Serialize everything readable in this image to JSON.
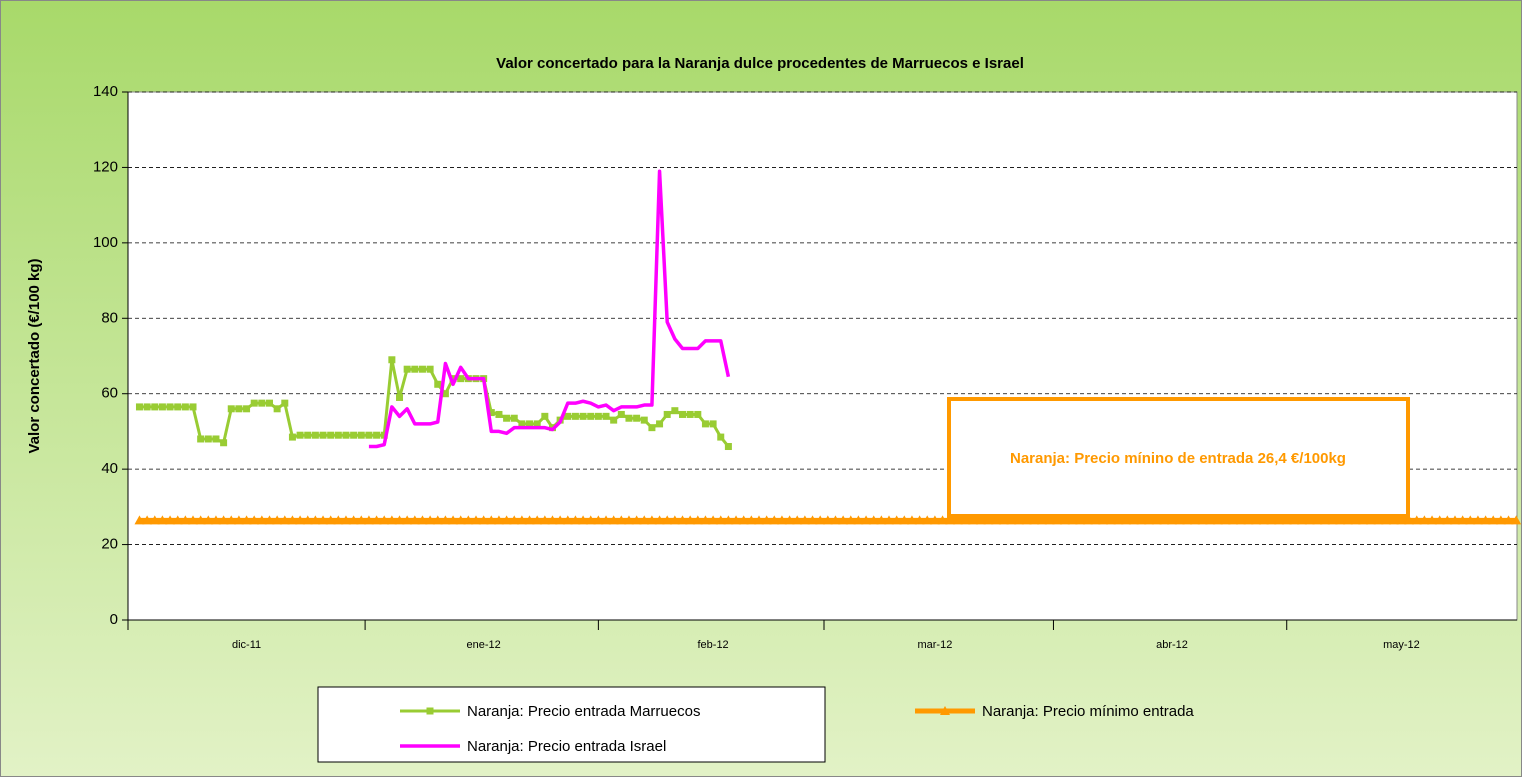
{
  "chart_data": {
    "type": "line",
    "title": "Valor concertado para la Naranja dulce procedentes de Marruecos e Israel",
    "y_label": "Valor concertado (€/100 kg)",
    "annotation": "Naranja: Precio mínino de entrada 26,4 €/100kg",
    "ylim": [
      0,
      140
    ],
    "yticks": [
      0,
      20,
      40,
      60,
      80,
      100,
      120,
      140
    ],
    "grid": true,
    "categories": [
      null,
      null,
      null,
      null,
      null,
      null,
      null,
      null,
      null,
      null,
      null,
      null,
      null,
      null,
      null,
      "dic-11",
      null,
      null,
      null,
      null,
      null,
      null,
      null,
      null,
      null,
      null,
      null,
      null,
      null,
      null,
      null,
      null,
      null,
      null,
      null,
      null,
      null,
      null,
      null,
      null,
      null,
      null,
      null,
      null,
      null,
      null,
      "ene-12",
      null,
      null,
      null,
      null,
      null,
      null,
      null,
      null,
      null,
      null,
      null,
      null,
      null,
      null,
      null,
      null,
      null,
      null,
      null,
      null,
      null,
      null,
      null,
      null,
      null,
      null,
      null,
      null,
      null,
      "feb-12",
      null,
      null,
      null,
      null,
      null,
      null,
      null,
      null,
      null,
      null,
      null,
      null,
      null,
      null,
      null,
      null,
      null,
      null,
      null,
      null,
      null,
      null,
      null,
      null,
      null,
      null,
      null,
      null,
      "mar-12",
      null,
      null,
      null,
      null,
      null,
      null,
      null,
      null,
      null,
      null,
      null,
      null,
      null,
      null,
      null,
      null,
      null,
      null,
      null,
      null,
      null,
      null,
      null,
      null,
      null,
      null,
      null,
      null,
      null,
      null,
      "abr-12",
      null,
      null,
      null,
      null,
      null,
      null,
      null,
      null,
      null,
      null,
      null,
      null,
      null,
      null,
      null,
      null,
      null,
      null,
      null,
      null,
      null,
      null,
      null,
      null,
      null,
      null,
      null,
      null,
      null,
      "may-12",
      null,
      null,
      null,
      null,
      null,
      null,
      null,
      null,
      null,
      null,
      null,
      null,
      null,
      null,
      null
    ],
    "series": [
      {
        "name": "Naranja: Precio entrada Marruecos",
        "color": "#99cc33",
        "width": 3,
        "marker": "square",
        "values": [
          null,
          56.5,
          56.5,
          56.5,
          56.5,
          56.5,
          56.5,
          56.5,
          56.5,
          48,
          48,
          48,
          47,
          56,
          56,
          56,
          57.5,
          57.5,
          57.5,
          56,
          57.5,
          48.5,
          49,
          49,
          49,
          49,
          49,
          49,
          49,
          49,
          49,
          49,
          49,
          49,
          69,
          59,
          66.5,
          66.5,
          66.5,
          66.5,
          62.5,
          60,
          64,
          64,
          64,
          64,
          64,
          55,
          54.5,
          53.5,
          53.5,
          52,
          52,
          52,
          54,
          51,
          53,
          54,
          54,
          54,
          54,
          54,
          54,
          53,
          54.5,
          53.5,
          53.5,
          53,
          51,
          52,
          54.5,
          55.5,
          54.5,
          54.5,
          54.5,
          52,
          52,
          48.5,
          46,
          null,
          null,
          null,
          null,
          null,
          null,
          null,
          null,
          null,
          null,
          null,
          null,
          null,
          null,
          null,
          null,
          null,
          null,
          null,
          null,
          null,
          null,
          null,
          null,
          null,
          null,
          null,
          null,
          null,
          null,
          null,
          null,
          null,
          null,
          null,
          null,
          null,
          null,
          null,
          null,
          null,
          null,
          null,
          null,
          null,
          null,
          null,
          null,
          null,
          null,
          null,
          null,
          null,
          null,
          null,
          null,
          null,
          null,
          null,
          null,
          null,
          null,
          null,
          null,
          null,
          null,
          null,
          null,
          null,
          null,
          null,
          null,
          null,
          null,
          null,
          null,
          null,
          null,
          null,
          null,
          null,
          null,
          null,
          null,
          null,
          null,
          null,
          null,
          null,
          null,
          null,
          null,
          null,
          null,
          null,
          null,
          null,
          null,
          null,
          null,
          null,
          null,
          null
        ]
      },
      {
        "name": "Naranja: Precio mínimo entrada",
        "color": "#ff9900",
        "width": 5,
        "marker": "triangle",
        "values": [
          null,
          26.4,
          26.4,
          26.4,
          26.4,
          26.4,
          26.4,
          26.4,
          26.4,
          26.4,
          26.4,
          26.4,
          26.4,
          26.4,
          26.4,
          26.4,
          26.4,
          26.4,
          26.4,
          26.4,
          26.4,
          26.4,
          26.4,
          26.4,
          26.4,
          26.4,
          26.4,
          26.4,
          26.4,
          26.4,
          26.4,
          26.4,
          26.4,
          26.4,
          26.4,
          26.4,
          26.4,
          26.4,
          26.4,
          26.4,
          26.4,
          26.4,
          26.4,
          26.4,
          26.4,
          26.4,
          26.4,
          26.4,
          26.4,
          26.4,
          26.4,
          26.4,
          26.4,
          26.4,
          26.4,
          26.4,
          26.4,
          26.4,
          26.4,
          26.4,
          26.4,
          26.4,
          26.4,
          26.4,
          26.4,
          26.4,
          26.4,
          26.4,
          26.4,
          26.4,
          26.4,
          26.4,
          26.4,
          26.4,
          26.4,
          26.4,
          26.4,
          26.4,
          26.4,
          26.4,
          26.4,
          26.4,
          26.4,
          26.4,
          26.4,
          26.4,
          26.4,
          26.4,
          26.4,
          26.4,
          26.4,
          26.4,
          26.4,
          26.4,
          26.4,
          26.4,
          26.4,
          26.4,
          26.4,
          26.4,
          26.4,
          26.4,
          26.4,
          26.4,
          26.4,
          26.4,
          26.4,
          26.4,
          26.4,
          26.4,
          26.4,
          26.4,
          26.4,
          26.4,
          26.4,
          26.4,
          26.4,
          26.4,
          26.4,
          26.4,
          26.4,
          26.4,
          26.4,
          26.4,
          26.4,
          26.4,
          26.4,
          26.4,
          26.4,
          26.4,
          26.4,
          26.4,
          26.4,
          26.4,
          26.4,
          26.4,
          26.4,
          26.4,
          26.4,
          26.4,
          26.4,
          26.4,
          26.4,
          26.4,
          26.4,
          26.4,
          26.4,
          26.4,
          26.4,
          26.4,
          26.4,
          26.4,
          26.4,
          26.4,
          26.4,
          26.4,
          26.4,
          26.4,
          26.4,
          26.4,
          26.4,
          26.4,
          26.4,
          26.4,
          26.4,
          26.4,
          26.4,
          26.4,
          26.4,
          26.4,
          26.4,
          26.4,
          26.4,
          26.4,
          26.4,
          26.4,
          26.4,
          26.4,
          26.4,
          26.4,
          26.4,
          26.4
        ]
      },
      {
        "name": "Naranja: Precio entrada Israel",
        "color": "#ff00ff",
        "width": 3.5,
        "marker": "none",
        "values": [
          null,
          null,
          null,
          null,
          null,
          null,
          null,
          null,
          null,
          null,
          null,
          null,
          null,
          null,
          null,
          null,
          null,
          null,
          null,
          null,
          null,
          null,
          null,
          null,
          null,
          null,
          null,
          null,
          null,
          null,
          null,
          46,
          46,
          46.5,
          56.5,
          54,
          56,
          52,
          52,
          52,
          52.5,
          68,
          62.5,
          67,
          64,
          64,
          64,
          50,
          50,
          49.5,
          51,
          51,
          51,
          51,
          51,
          50.5,
          52.5,
          57.5,
          57.5,
          58,
          57.5,
          56.5,
          57,
          55.5,
          56.5,
          56.5,
          56.5,
          57,
          57,
          119,
          79,
          74.5,
          72,
          72,
          72,
          74,
          74,
          74,
          64.5,
          null,
          null,
          null,
          null,
          null,
          null,
          null,
          null,
          null,
          null,
          null,
          null,
          null,
          null,
          null,
          null,
          null,
          null,
          null,
          null,
          null,
          null,
          null,
          null,
          null,
          null,
          null,
          null,
          null,
          null,
          null,
          null,
          null,
          null,
          null,
          null,
          null,
          null,
          null,
          null,
          null,
          null,
          null,
          null,
          null,
          null,
          null,
          null,
          null,
          null,
          null,
          null,
          null,
          null,
          null,
          null,
          null,
          null,
          null,
          null,
          null,
          null,
          null,
          null,
          null,
          null,
          null,
          null,
          null,
          null,
          null,
          null,
          null,
          null,
          null,
          null,
          null,
          null,
          null,
          null,
          null,
          null,
          null,
          null,
          null,
          null,
          null,
          null,
          null,
          null,
          null,
          null,
          null,
          null,
          null,
          null,
          null,
          null,
          null,
          null,
          null,
          null,
          null
        ]
      }
    ]
  }
}
